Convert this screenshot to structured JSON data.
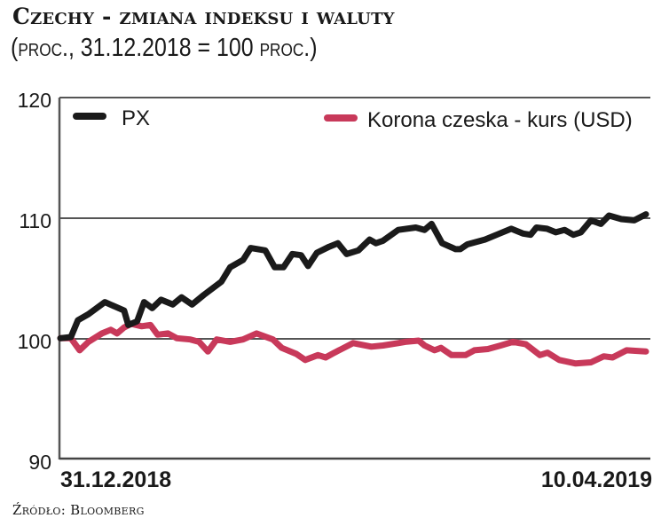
{
  "header": {
    "title": "Czechy - zmiana indeksu i waluty",
    "subtitle_open": "(",
    "subtitle_unit1": "proc.",
    "subtitle_mid": ", 31.12.2018 = 100 ",
    "subtitle_unit2": "proc.",
    "subtitle_close": ")"
  },
  "footer": {
    "source": "Źródło: Bloomberg"
  },
  "colors": {
    "px": "#1a1a1a",
    "korona": "#c8395a",
    "grid": "#555555"
  },
  "chart_data": {
    "type": "line",
    "title": "Czechy - zmiana indeksu i waluty",
    "subtitle": "(proc., 31.12.2018 = 100 proc.)",
    "xlabel": "",
    "ylabel": "",
    "ylim": [
      90,
      120
    ],
    "yticks": [
      "120",
      "110",
      "100",
      "90"
    ],
    "x_start_label": "31.12.2018",
    "x_end_label": "10.04.2019",
    "grid": "horizontal at 110 and 100",
    "legend_position": "top inside",
    "series": [
      {
        "name": "PX",
        "color": "#1a1a1a",
        "x": [
          0,
          0.018,
          0.03,
          0.048,
          0.076,
          0.109,
          0.116,
          0.131,
          0.143,
          0.157,
          0.172,
          0.192,
          0.207,
          0.225,
          0.245,
          0.275,
          0.29,
          0.312,
          0.325,
          0.35,
          0.366,
          0.381,
          0.396,
          0.411,
          0.423,
          0.438,
          0.459,
          0.474,
          0.489,
          0.509,
          0.528,
          0.539,
          0.551,
          0.577,
          0.607,
          0.622,
          0.634,
          0.652,
          0.675,
          0.683,
          0.695,
          0.725,
          0.75,
          0.77,
          0.79,
          0.803,
          0.813,
          0.831,
          0.846,
          0.861,
          0.876,
          0.889,
          0.906,
          0.923,
          0.937,
          0.958,
          0.98,
          1.0
        ],
        "values": [
          100.0,
          100.1,
          101.5,
          102.0,
          103.0,
          102.3,
          101.1,
          101.4,
          103.0,
          102.5,
          103.2,
          102.8,
          103.4,
          102.8,
          103.6,
          104.7,
          105.9,
          106.5,
          107.5,
          107.3,
          105.9,
          105.9,
          107.0,
          106.9,
          106.0,
          107.1,
          107.6,
          107.9,
          107.0,
          107.3,
          108.2,
          107.9,
          108.1,
          109.0,
          109.2,
          109.0,
          109.5,
          107.9,
          107.4,
          107.4,
          107.8,
          108.2,
          108.7,
          109.1,
          108.7,
          108.6,
          109.2,
          109.1,
          108.8,
          109.0,
          108.6,
          108.8,
          109.8,
          109.5,
          110.2,
          109.9,
          109.8,
          110.3
        ]
      },
      {
        "name": "Korona czeska - kurs (USD)",
        "color": "#c8395a",
        "x": [
          0,
          0.018,
          0.033,
          0.048,
          0.071,
          0.086,
          0.097,
          0.109,
          0.121,
          0.139,
          0.154,
          0.166,
          0.184,
          0.199,
          0.222,
          0.237,
          0.252,
          0.267,
          0.29,
          0.312,
          0.335,
          0.363,
          0.378,
          0.403,
          0.418,
          0.44,
          0.453,
          0.468,
          0.5,
          0.531,
          0.551,
          0.577,
          0.589,
          0.612,
          0.622,
          0.639,
          0.65,
          0.668,
          0.692,
          0.707,
          0.73,
          0.752,
          0.773,
          0.795,
          0.819,
          0.832,
          0.852,
          0.88,
          0.906,
          0.928,
          0.943,
          0.967,
          1.0
        ],
        "values": [
          100.0,
          100.0,
          99.0,
          99.7,
          100.4,
          100.7,
          100.4,
          100.9,
          101.2,
          101.0,
          101.1,
          100.3,
          100.4,
          100.0,
          99.9,
          99.7,
          98.9,
          99.9,
          99.7,
          99.9,
          100.4,
          99.9,
          99.2,
          98.7,
          98.2,
          98.6,
          98.4,
          98.8,
          99.6,
          99.3,
          99.4,
          99.6,
          99.7,
          99.8,
          99.4,
          99.0,
          99.2,
          98.6,
          98.6,
          99.0,
          99.1,
          99.4,
          99.7,
          99.5,
          98.6,
          98.8,
          98.2,
          97.9,
          98.0,
          98.5,
          98.4,
          99.0,
          98.9
        ]
      }
    ]
  }
}
